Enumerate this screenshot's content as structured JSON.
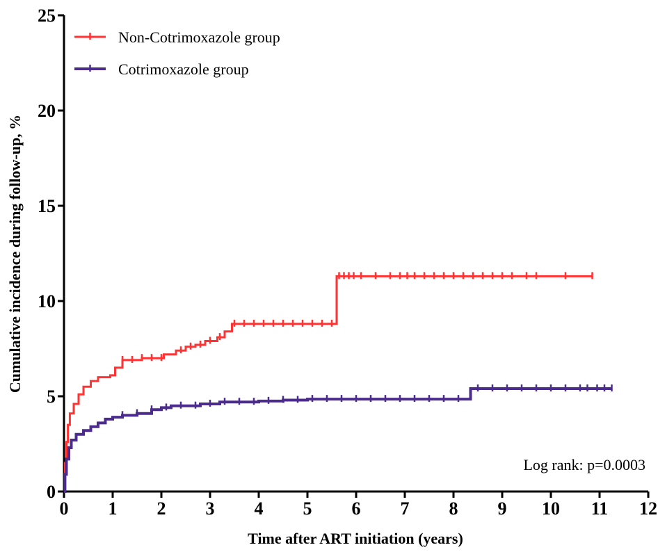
{
  "chart_data": {
    "type": "line",
    "subtype": "kaplan-meier step (cumulative incidence)",
    "xlabel": "Time after ART initiation (years)",
    "ylabel": "Cumulative incidence during follow-up, %",
    "xlim": [
      0,
      12
    ],
    "ylim": [
      0,
      25
    ],
    "xticks": [
      0,
      1,
      2,
      3,
      4,
      5,
      6,
      7,
      8,
      9,
      10,
      11,
      12
    ],
    "yticks": [
      0,
      5,
      10,
      15,
      20,
      25
    ],
    "grid": false,
    "legend_position": "top-left",
    "annotation": "Log rank: p=0.0003",
    "series": [
      {
        "name": "Non-Cotrimoxazole group",
        "color": "#ff3333",
        "points": [
          [
            0,
            0
          ],
          [
            0.02,
            1.5
          ],
          [
            0.05,
            2.6
          ],
          [
            0.08,
            3.5
          ],
          [
            0.12,
            4.1
          ],
          [
            0.2,
            4.6
          ],
          [
            0.3,
            5.1
          ],
          [
            0.4,
            5.5
          ],
          [
            0.55,
            5.8
          ],
          [
            0.7,
            6.0
          ],
          [
            0.95,
            6.1
          ],
          [
            1.05,
            6.5
          ],
          [
            1.2,
            6.9
          ],
          [
            1.6,
            7.0
          ],
          [
            2.05,
            7.2
          ],
          [
            2.3,
            7.4
          ],
          [
            2.5,
            7.6
          ],
          [
            2.7,
            7.7
          ],
          [
            2.9,
            7.9
          ],
          [
            3.15,
            8.1
          ],
          [
            3.3,
            8.4
          ],
          [
            3.45,
            8.8
          ],
          [
            5.1,
            8.8
          ],
          [
            5.6,
            8.8
          ],
          [
            5.6,
            11.3
          ],
          [
            10.85,
            11.3
          ]
        ],
        "censor_marks_x": [
          1.2,
          1.4,
          1.6,
          1.8,
          2.0,
          2.4,
          2.6,
          2.8,
          3.0,
          3.2,
          3.5,
          3.7,
          3.9,
          4.1,
          4.3,
          4.5,
          4.7,
          4.9,
          5.1,
          5.3,
          5.5,
          5.65,
          5.75,
          5.85,
          5.95,
          6.1,
          6.4,
          6.7,
          6.9,
          7.05,
          7.2,
          7.4,
          7.6,
          7.8,
          8.0,
          8.2,
          8.4,
          8.6,
          8.8,
          9.0,
          9.2,
          9.5,
          9.7,
          10.3,
          10.85
        ]
      },
      {
        "name": "Cotrimoxazole group",
        "color": "#4b2c8c",
        "points": [
          [
            0,
            0
          ],
          [
            0.02,
            0.9
          ],
          [
            0.05,
            1.7
          ],
          [
            0.1,
            2.3
          ],
          [
            0.15,
            2.7
          ],
          [
            0.25,
            3.0
          ],
          [
            0.4,
            3.2
          ],
          [
            0.55,
            3.4
          ],
          [
            0.7,
            3.6
          ],
          [
            0.85,
            3.8
          ],
          [
            1.0,
            3.9
          ],
          [
            1.2,
            4.0
          ],
          [
            1.5,
            4.1
          ],
          [
            1.8,
            4.3
          ],
          [
            2.0,
            4.4
          ],
          [
            2.2,
            4.5
          ],
          [
            2.6,
            4.5
          ],
          [
            2.8,
            4.6
          ],
          [
            3.2,
            4.7
          ],
          [
            3.6,
            4.7
          ],
          [
            4.0,
            4.75
          ],
          [
            4.5,
            4.8
          ],
          [
            5.0,
            4.85
          ],
          [
            8.35,
            4.85
          ],
          [
            8.35,
            5.4
          ],
          [
            11.25,
            5.4
          ]
        ],
        "censor_marks_x": [
          1.2,
          1.5,
          1.8,
          2.1,
          2.4,
          2.7,
          3.0,
          3.3,
          3.6,
          3.9,
          4.2,
          4.5,
          4.8,
          5.1,
          5.4,
          5.7,
          6.0,
          6.3,
          6.6,
          6.9,
          7.2,
          7.5,
          7.8,
          8.1,
          8.5,
          8.8,
          9.1,
          9.4,
          9.7,
          10.0,
          10.3,
          10.6,
          10.75,
          10.95,
          11.1,
          11.25
        ]
      }
    ]
  }
}
